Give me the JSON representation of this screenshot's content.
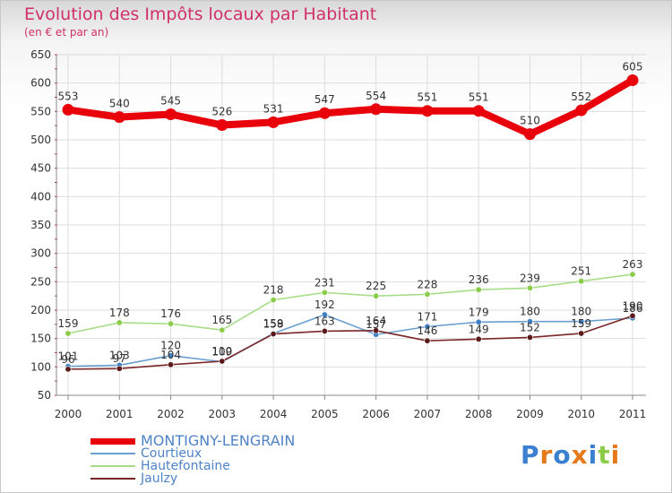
{
  "title": "Evolution des Impôts locaux par Habitant",
  "subtitle": "(en € et par an)",
  "brand": "Proxiti",
  "colors": {
    "title": "#d0306a",
    "grid": "#dddddd",
    "axis": "#888888",
    "legend_text": "#4f83c8"
  },
  "chart_data": {
    "type": "line",
    "title": "Evolution des Impôts locaux par Habitant",
    "subtitle": "(en € et par an)",
    "xlabel": "",
    "ylabel": "",
    "ylim": [
      50,
      650
    ],
    "yticks": [
      50,
      100,
      150,
      200,
      250,
      300,
      350,
      400,
      450,
      500,
      550,
      600,
      650
    ],
    "grid": true,
    "legend_position": "bottom-left",
    "categories": [
      "2000",
      "2001",
      "2002",
      "2003",
      "2004",
      "2005",
      "2006",
      "2007",
      "2008",
      "2009",
      "2010",
      "2011"
    ],
    "series": [
      {
        "name": "MONTIGNY-LENGRAIN",
        "color": "#e8000b",
        "marker": "#e8000b",
        "primary": true,
        "values": [
          553,
          540,
          545,
          526,
          531,
          547,
          554,
          551,
          551,
          510,
          552,
          605
        ],
        "labels": [
          "553",
          "540",
          "545",
          "526",
          "531",
          "547",
          "554",
          "551",
          "551",
          "510",
          "552",
          "605"
        ]
      },
      {
        "name": "Courtieux",
        "color": "#6a9fd0",
        "marker": "#3f80c4",
        "primary": false,
        "values": [
          101,
          103,
          120,
          109,
          159,
          192,
          157,
          171,
          179,
          180,
          180,
          186
        ],
        "labels": [
          "101",
          "103",
          "120",
          "109",
          "159",
          "192",
          "157",
          "171",
          "179",
          "180",
          "180",
          "186"
        ]
      },
      {
        "name": "Hautefontaine",
        "color": "#a8dd88",
        "marker": "#8acb48",
        "primary": false,
        "values": [
          159,
          178,
          176,
          165,
          218,
          231,
          225,
          228,
          236,
          239,
          251,
          263
        ],
        "labels": [
          "159",
          "178",
          "176",
          "165",
          "218",
          "231",
          "225",
          "228",
          "236",
          "239",
          "251",
          "263"
        ]
      },
      {
        "name": "Jaulzy",
        "color": "#7a2626",
        "marker": "#5a1a1a",
        "primary": false,
        "values": [
          96,
          97,
          104,
          110,
          158,
          163,
          164,
          146,
          149,
          152,
          159,
          190
        ],
        "labels": [
          "96",
          "97",
          "104",
          "110",
          "158",
          "163",
          "164",
          "146",
          "149",
          "152",
          "159",
          "190"
        ]
      }
    ]
  }
}
